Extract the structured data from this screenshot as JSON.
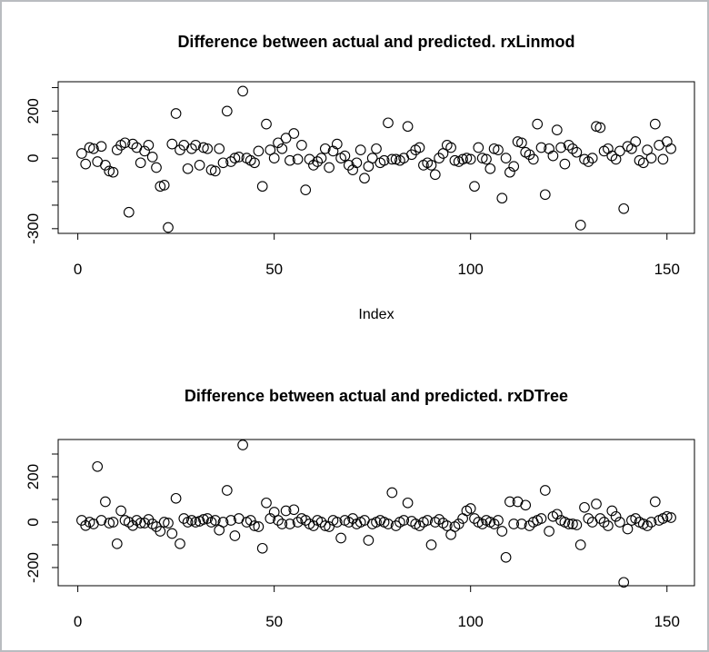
{
  "window": {
    "background": "#ffffff",
    "border_color": "#b9bcc0",
    "marker_color": "#000000"
  },
  "chart_data": [
    {
      "type": "scatter",
      "title": "Difference between actual and predicted. rxLinmod",
      "xlabel": "Index",
      "ylabel": "",
      "marker": "open-circle",
      "grid": false,
      "xlim": [
        -5,
        157
      ],
      "ylim": [
        -320,
        325
      ],
      "x_ticks": [
        0,
        50,
        100,
        150
      ],
      "x_tick_labels": [
        "0",
        "50",
        "100",
        "150"
      ],
      "y_ticks": [
        300,
        200,
        100,
        0,
        -100,
        -200,
        -300
      ],
      "y_tick_labels": [
        {
          "value": 200,
          "label": "200"
        },
        {
          "value": 0,
          "label": "0"
        },
        {
          "value": -300,
          "label": "-300"
        }
      ],
      "x_is_index_1_to_n": true,
      "values_note": "approximate values read from pixels",
      "values": [
        20,
        -25,
        45,
        40,
        -15,
        50,
        -30,
        -55,
        -60,
        35,
        55,
        65,
        -230,
        60,
        45,
        -20,
        30,
        55,
        5,
        -40,
        -120,
        -115,
        -295,
        60,
        190,
        35,
        55,
        -45,
        40,
        55,
        -30,
        45,
        40,
        -50,
        -55,
        40,
        -20,
        200,
        -15,
        0,
        5,
        285,
        0,
        -10,
        -20,
        30,
        -120,
        145,
        35,
        0,
        65,
        40,
        85,
        -10,
        105,
        -5,
        55,
        -135,
        -5,
        -30,
        -15,
        0,
        40,
        -40,
        30,
        60,
        0,
        10,
        -30,
        -50,
        -20,
        35,
        -85,
        -35,
        0,
        40,
        -20,
        -10,
        150,
        -5,
        -5,
        -10,
        0,
        135,
        15,
        35,
        45,
        -30,
        -20,
        -30,
        -70,
        0,
        20,
        55,
        45,
        -10,
        -15,
        -5,
        0,
        -5,
        -120,
        45,
        0,
        -5,
        -45,
        40,
        35,
        -170,
        0,
        -60,
        -35,
        70,
        65,
        25,
        15,
        -5,
        145,
        45,
        -155,
        40,
        10,
        120,
        45,
        -25,
        55,
        40,
        25,
        -285,
        -5,
        -15,
        0,
        135,
        130,
        30,
        40,
        10,
        -5,
        30,
        -215,
        50,
        40,
        70,
        -10,
        -20,
        35,
        0,
        145,
        55,
        -5,
        70,
        40
      ]
    },
    {
      "type": "scatter",
      "title": "Difference between actual and predicted. rxDTree",
      "xlabel": "",
      "ylabel": "",
      "marker": "open-circle",
      "grid": false,
      "xlim": [
        -5,
        157
      ],
      "ylim": [
        -280,
        364
      ],
      "x_ticks": [
        0,
        50,
        100,
        150
      ],
      "x_tick_labels": [
        "0",
        "50",
        "100",
        "150"
      ],
      "y_ticks": [
        300,
        200,
        100,
        0,
        -100,
        -200
      ],
      "y_tick_labels": [
        {
          "value": 200,
          "label": "200"
        },
        {
          "value": 0,
          "label": "0"
        },
        {
          "value": -200,
          "label": "-200"
        }
      ],
      "x_is_index_1_to_n": true,
      "values_note": "approximate values read from pixels",
      "values": [
        8,
        -15,
        0,
        -8,
        245,
        8,
        90,
        -4,
        0,
        -95,
        50,
        8,
        0,
        -15,
        8,
        -4,
        -4,
        12,
        -8,
        -20,
        -40,
        0,
        -4,
        -50,
        105,
        -95,
        16,
        0,
        8,
        0,
        4,
        12,
        16,
        0,
        8,
        -35,
        0,
        140,
        8,
        -60,
        16,
        340,
        0,
        8,
        -16,
        -20,
        -115,
        85,
        16,
        44,
        8,
        -8,
        50,
        -8,
        55,
        0,
        16,
        8,
        -8,
        -16,
        8,
        0,
        -16,
        -20,
        8,
        0,
        -70,
        8,
        0,
        16,
        -8,
        0,
        8,
        -80,
        -8,
        0,
        8,
        0,
        -8,
        130,
        -16,
        0,
        8,
        85,
        4,
        -8,
        -16,
        0,
        8,
        -100,
        0,
        12,
        -4,
        -16,
        -55,
        -20,
        -8,
        16,
        50,
        60,
        16,
        0,
        -8,
        8,
        0,
        -8,
        8,
        -40,
        -155,
        90,
        -8,
        90,
        -8,
        75,
        -16,
        0,
        8,
        16,
        140,
        -40,
        25,
        35,
        8,
        0,
        -8,
        -8,
        -12,
        -100,
        65,
        16,
        0,
        80,
        16,
        0,
        -16,
        50,
        25,
        0,
        -265,
        -30,
        8,
        16,
        0,
        -8,
        -16,
        0,
        90,
        8,
        16,
        25,
        20
      ]
    }
  ]
}
